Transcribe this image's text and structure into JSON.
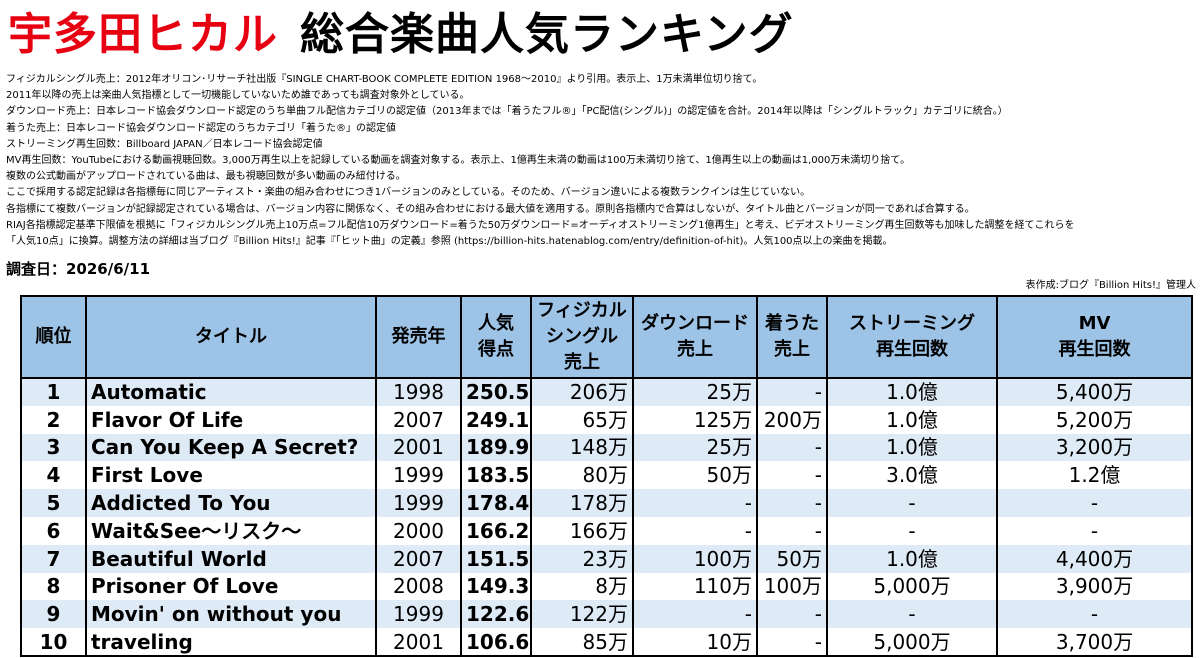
{
  "title": {
    "artist": "宇多田ヒカル",
    "rest": "総合楽曲人気ランキング"
  },
  "notes": [
    "フィジカルシングル売上：2012年オリコン･リサーチ社出版『SINGLE CHART-BOOK COMPLETE EDITION 1968～2010』より引用。表示上、1万未満単位切り捨て。",
    "2011年以降の売上は楽曲人気指標として一切機能していないため誰であっても調査対象外としている。",
    "ダウンロード売上：日本レコード協会ダウンロード認定のうち単曲フル配信カテゴリの認定値（2013年までは「着うたフル®」「PC配信(シングル)」の認定値を合計。2014年以降は「シングルトラック」カテゴリに統合。）",
    "着うた売上：日本レコード協会ダウンロード認定のうちカテゴリ「着うた®」の認定値",
    "ストリーミング再生回数：Billboard JAPAN／日本レコード協会認定値",
    "MV再生回数：YouTubeにおける動画視聴回数。3,000万再生以上を記録している動画を調査対象する。表示上、1億再生未満の動画は100万未満切り捨て、1億再生以上の動画は1,000万未満切り捨て。",
    "複数の公式動画がアップロードされている曲は、最も視聴回数が多い動画のみ紐付ける。",
    "ここで採用する認定記録は各指標毎に同じアーティスト・楽曲の組み合わせにつき1バージョンのみとしている。そのため、バージョン違いによる複数ランクインは生じていない。",
    "各指標にて複数バージョンが記録認定されている場合は、バージョン内容に関係なく、その組み合わせにおける最大値を適用する。原則各指標内で合算はしないが、タイトル曲とバージョンが同一であれば合算する。",
    "RIAJ各指標認定基準下限値を根拠に「フィジカルシングル売上10万点=フル配信10万ダウンロード=着うた50万ダウンロード=オーディオストリーミング1億再生」と考え、ビデオストリーミング再生回数等も加味した調整を経てこれらを",
    "「人気10点」に換算。調整方法の詳細は当ブログ『Billion Hits!』記事『「ヒット曲」の定義』参照 (https://billion-hits.hatenablog.com/entry/definition-of-hit)。人気100点以上の楽曲を掲載。"
  ],
  "date": "調査日：2026/6/11",
  "credit": "表作成:ブログ『Billion Hits!』管理人",
  "table": {
    "headers": {
      "rank": "順位",
      "title": "タイトル",
      "year": "発売年",
      "score": [
        "人気",
        "得点"
      ],
      "physical": [
        "フィジカル",
        "シングル",
        "売上"
      ],
      "download": [
        "ダウンロード",
        "売上"
      ],
      "chakuuta": [
        "着うた",
        "売上"
      ],
      "streaming": [
        "ストリーミング",
        "再生回数"
      ],
      "mv": [
        "MV",
        "再生回数"
      ]
    },
    "rows": [
      {
        "rank": "1",
        "title": "Automatic",
        "year": "1998",
        "score": "250.5",
        "physical": "206万",
        "download": "25万",
        "chakuuta": "-",
        "streaming": "1.0億",
        "mv": "5,400万"
      },
      {
        "rank": "2",
        "title": "Flavor Of Life",
        "year": "2007",
        "score": "249.1",
        "physical": "65万",
        "download": "125万",
        "chakuuta": "200万",
        "streaming": "1.0億",
        "mv": "5,200万"
      },
      {
        "rank": "3",
        "title": "Can You Keep A Secret?",
        "year": "2001",
        "score": "189.9",
        "physical": "148万",
        "download": "25万",
        "chakuuta": "-",
        "streaming": "1.0億",
        "mv": "3,200万"
      },
      {
        "rank": "4",
        "title": "First Love",
        "year": "1999",
        "score": "183.5",
        "physical": "80万",
        "download": "50万",
        "chakuuta": "-",
        "streaming": "3.0億",
        "mv": "1.2億"
      },
      {
        "rank": "5",
        "title": "Addicted To You",
        "year": "1999",
        "score": "178.4",
        "physical": "178万",
        "download": "-",
        "chakuuta": "-",
        "streaming": "-",
        "mv": "-"
      },
      {
        "rank": "6",
        "title": "Wait&See～リスク～",
        "year": "2000",
        "score": "166.2",
        "physical": "166万",
        "download": "-",
        "chakuuta": "-",
        "streaming": "-",
        "mv": "-"
      },
      {
        "rank": "7",
        "title": "Beautiful World",
        "year": "2007",
        "score": "151.5",
        "physical": "23万",
        "download": "100万",
        "chakuuta": "50万",
        "streaming": "1.0億",
        "mv": "4,400万"
      },
      {
        "rank": "8",
        "title": "Prisoner Of Love",
        "year": "2008",
        "score": "149.3",
        "physical": "8万",
        "download": "110万",
        "chakuuta": "100万",
        "streaming": "5,000万",
        "mv": "3,900万"
      },
      {
        "rank": "9",
        "title": "Movin' on without you",
        "year": "1999",
        "score": "122.6",
        "physical": "122万",
        "download": "-",
        "chakuuta": "-",
        "streaming": "-",
        "mv": "-"
      },
      {
        "rank": "10",
        "title": "traveling",
        "year": "2001",
        "score": "106.6",
        "physical": "85万",
        "download": "10万",
        "chakuuta": "-",
        "streaming": "5,000万",
        "mv": "3,700万"
      }
    ]
  }
}
